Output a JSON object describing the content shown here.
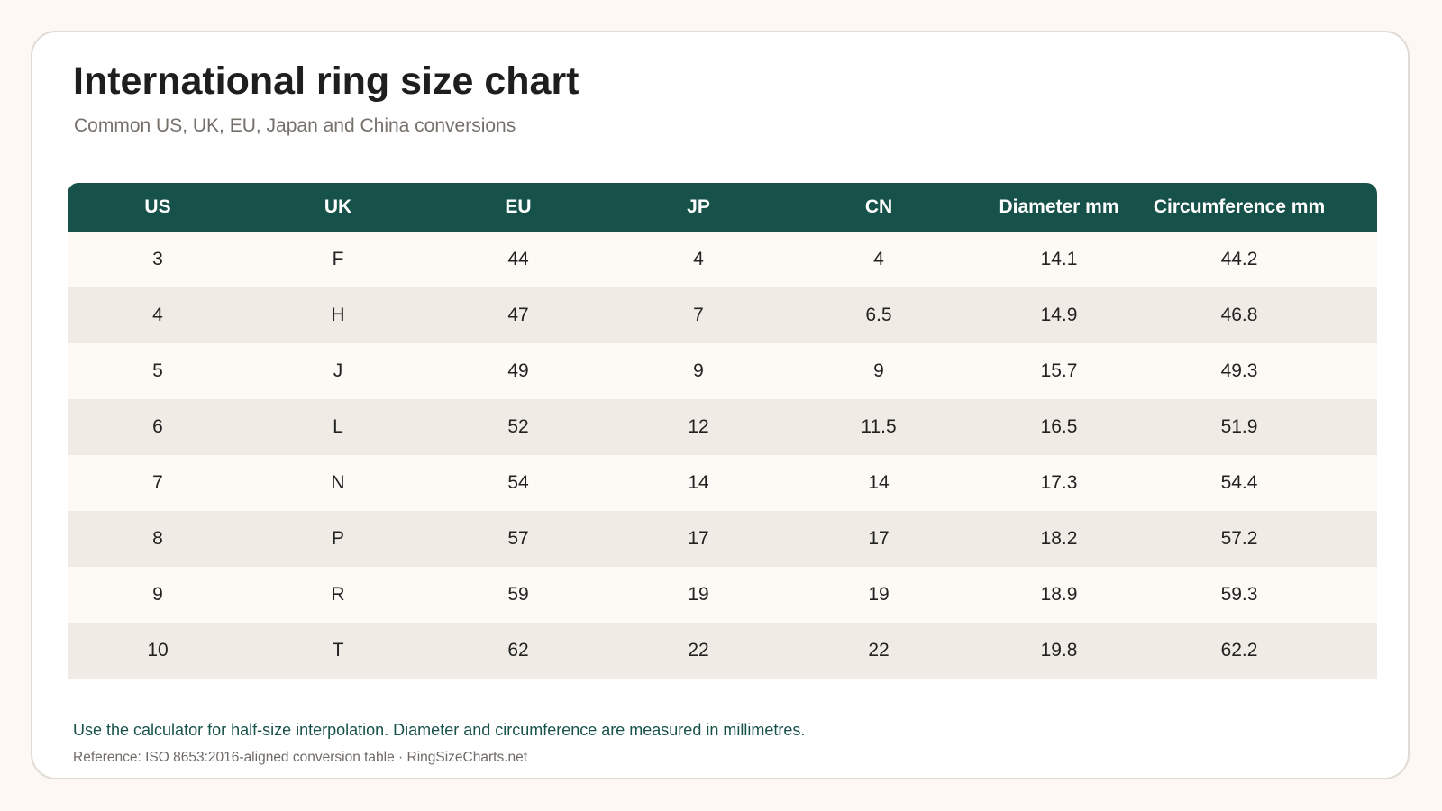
{
  "title": "International ring size chart",
  "subtitle": "Common US, UK, EU, Japan and China conversions",
  "table": {
    "columns": [
      "US",
      "UK",
      "EU",
      "JP",
      "CN",
      "Diameter mm",
      "Circumference mm"
    ],
    "rows": [
      [
        "3",
        "F",
        "44",
        "4",
        "4",
        "14.1",
        "44.2"
      ],
      [
        "4",
        "H",
        "47",
        "7",
        "6.5",
        "14.9",
        "46.8"
      ],
      [
        "5",
        "J",
        "49",
        "9",
        "9",
        "15.7",
        "49.3"
      ],
      [
        "6",
        "L",
        "52",
        "12",
        "11.5",
        "16.5",
        "51.9"
      ],
      [
        "7",
        "N",
        "54",
        "14",
        "14",
        "17.3",
        "54.4"
      ],
      [
        "8",
        "P",
        "57",
        "17",
        "17",
        "18.2",
        "57.2"
      ],
      [
        "9",
        "R",
        "59",
        "19",
        "19",
        "18.9",
        "59.3"
      ],
      [
        "10",
        "T",
        "62",
        "22",
        "22",
        "19.8",
        "62.2"
      ]
    ]
  },
  "note": "Use the calculator for half-size interpolation. Diameter and circumference are measured in millimetres.",
  "reference": "Reference: ISO 8653:2016-aligned conversion table · RingSizeCharts.net",
  "colors": {
    "header_bg": "#17524a",
    "row_light": "#fdf9f4",
    "row_dark": "#f0ece5",
    "note_text": "#17524a"
  }
}
